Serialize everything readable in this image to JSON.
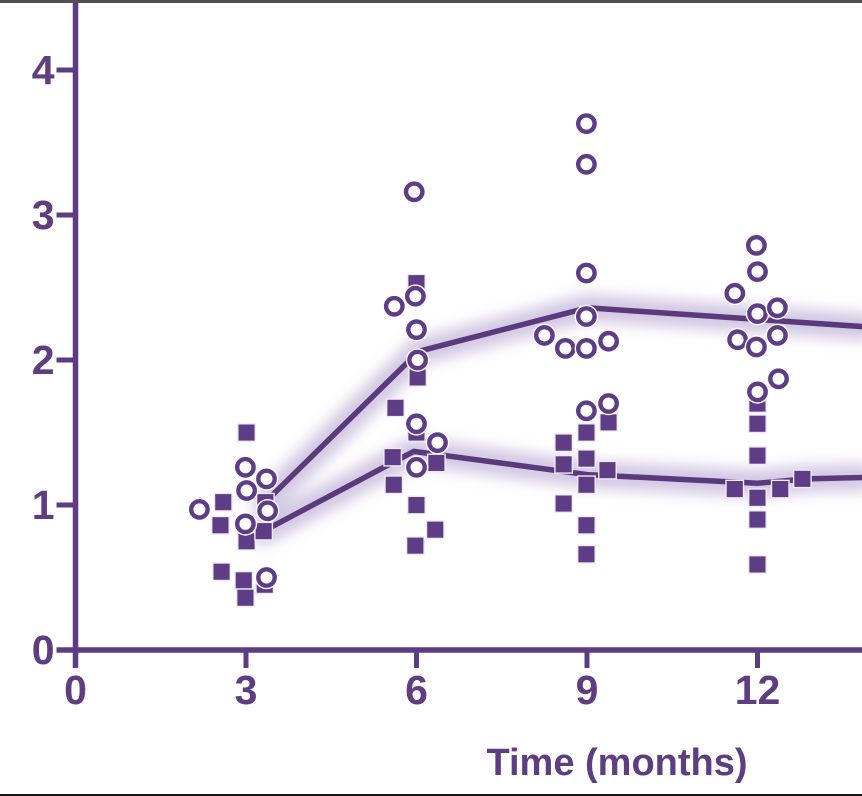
{
  "figure": {
    "background": "#ffffff",
    "accent": "#5d3c83",
    "line_color": "#5a3a7d",
    "marker_color": "#5f3d86",
    "glow_color": "#cabddd",
    "text_color": "#5e3d80",
    "top_border_color": "#515151",
    "bottom_border_color": "#161616"
  },
  "chart_data": {
    "type": "scatter",
    "title": "",
    "xlabel": "Time (months)",
    "ylabel": "",
    "x_ticks": [
      0,
      3,
      6,
      9,
      12
    ],
    "y_ticks": [
      0,
      1,
      2,
      3,
      4
    ],
    "xlim": [
      0,
      13.85
    ],
    "ylim": [
      0,
      4.48
    ],
    "grid": false,
    "legend": "none",
    "series": [
      {
        "name": "open-circles",
        "marker": "circle",
        "points": [
          [
            2.99,
            1.26
          ],
          [
            3.36,
            1.18
          ],
          [
            3.01,
            1.1
          ],
          [
            2.18,
            0.97
          ],
          [
            2.99,
            0.87
          ],
          [
            3.38,
            0.96
          ],
          [
            3.36,
            0.5
          ],
          [
            5.96,
            3.16
          ],
          [
            5.98,
            2.44
          ],
          [
            5.61,
            2.37
          ],
          [
            6.0,
            2.21
          ],
          [
            6.02,
            2.0
          ],
          [
            6.0,
            1.56
          ],
          [
            6.37,
            1.43
          ],
          [
            6.0,
            1.26
          ],
          [
            8.99,
            3.63
          ],
          [
            8.99,
            3.35
          ],
          [
            8.99,
            2.6
          ],
          [
            8.99,
            2.3
          ],
          [
            8.25,
            2.17
          ],
          [
            8.62,
            2.08
          ],
          [
            8.99,
            2.08
          ],
          [
            9.38,
            2.13
          ],
          [
            8.99,
            1.65
          ],
          [
            9.38,
            1.7
          ],
          [
            11.98,
            2.79
          ],
          [
            12.0,
            2.61
          ],
          [
            11.6,
            2.46
          ],
          [
            12.0,
            2.32
          ],
          [
            12.35,
            2.36
          ],
          [
            11.65,
            2.14
          ],
          [
            11.98,
            2.09
          ],
          [
            12.35,
            2.17
          ],
          [
            12.37,
            1.87
          ],
          [
            12.0,
            1.78
          ]
        ]
      },
      {
        "name": "filled-squares",
        "marker": "square",
        "points": [
          [
            3.01,
            1.5
          ],
          [
            2.6,
            1.02
          ],
          [
            3.34,
            1.02
          ],
          [
            2.55,
            0.86
          ],
          [
            3.01,
            0.75
          ],
          [
            3.31,
            0.82
          ],
          [
            2.57,
            0.54
          ],
          [
            2.96,
            0.48
          ],
          [
            3.33,
            0.45
          ],
          [
            2.99,
            0.36
          ],
          [
            6.0,
            2.53
          ],
          [
            6.02,
            1.88
          ],
          [
            5.63,
            1.67
          ],
          [
            6.0,
            1.5
          ],
          [
            5.58,
            1.33
          ],
          [
            6.35,
            1.29
          ],
          [
            5.6,
            1.14
          ],
          [
            6.0,
            1.0
          ],
          [
            6.33,
            0.83
          ],
          [
            5.98,
            0.72
          ],
          [
            9.38,
            1.57
          ],
          [
            8.99,
            1.5
          ],
          [
            8.59,
            1.43
          ],
          [
            8.99,
            1.32
          ],
          [
            8.59,
            1.28
          ],
          [
            9.36,
            1.24
          ],
          [
            8.99,
            1.14
          ],
          [
            8.59,
            1.01
          ],
          [
            8.99,
            0.86
          ],
          [
            8.99,
            0.66
          ],
          [
            12.0,
            1.7
          ],
          [
            12.0,
            1.56
          ],
          [
            12.0,
            1.34
          ],
          [
            11.6,
            1.11
          ],
          [
            12.0,
            1.05
          ],
          [
            12.4,
            1.11
          ],
          [
            12.79,
            1.18
          ],
          [
            12.0,
            0.9
          ],
          [
            12.0,
            0.59
          ]
        ]
      },
      {
        "name": "upper-trend-line",
        "type": "line",
        "points": [
          [
            3.34,
            1.02
          ],
          [
            6.04,
            2.06
          ],
          [
            9.01,
            2.36
          ],
          [
            12.0,
            2.28
          ],
          [
            13.85,
            2.23
          ]
        ]
      },
      {
        "name": "lower-trend-line",
        "type": "line",
        "points": [
          [
            3.31,
            0.82
          ],
          [
            5.95,
            1.37
          ],
          [
            9.0,
            1.21
          ],
          [
            12.0,
            1.15
          ],
          [
            12.85,
            1.18
          ],
          [
            13.85,
            1.19
          ]
        ]
      }
    ]
  }
}
